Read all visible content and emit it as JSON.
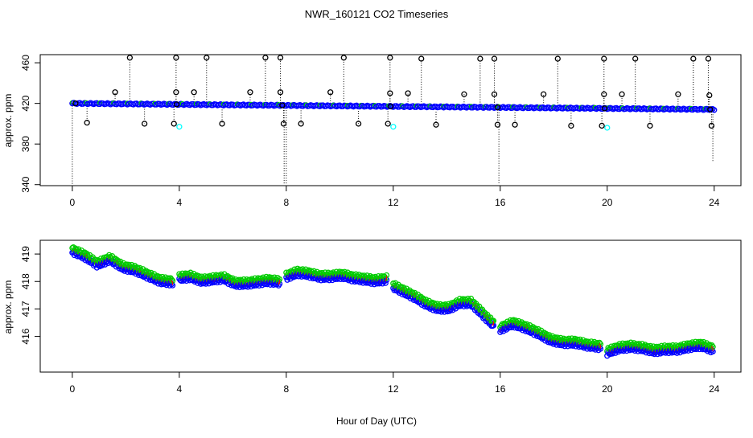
{
  "title": "NWR_160121  CO2 Timeseries",
  "xlabel": "Hour of Day (UTC)",
  "colors": {
    "black": "#000000",
    "blue": "#0000ff",
    "cyan": "#00ffff",
    "green": "#00cc00",
    "red": "#ff0000",
    "axis": "#000000"
  },
  "chart_data": [
    {
      "type": "scatter",
      "ylabel": "approx. ppm",
      "xlim": [
        -1.2,
        25
      ],
      "ylim": [
        339,
        468
      ],
      "xticks": [
        0,
        4,
        8,
        12,
        16,
        20,
        24
      ],
      "yticks": [
        340,
        380,
        420,
        460
      ],
      "ytick_labels": [
        "340",
        "380",
        "420",
        "460"
      ],
      "baseline": {
        "start": 420,
        "end": 414
      },
      "spikes_high": [
        {
          "x": 0.12,
          "y": 420
        },
        {
          "x": 1.6,
          "y": 431
        },
        {
          "x": 2.15,
          "y": 465
        },
        {
          "x": 3.88,
          "y": 465
        },
        {
          "x": 3.88,
          "y": 431
        },
        {
          "x": 4.55,
          "y": 431
        },
        {
          "x": 5.02,
          "y": 465
        },
        {
          "x": 6.65,
          "y": 431
        },
        {
          "x": 7.22,
          "y": 465
        },
        {
          "x": 7.78,
          "y": 465
        },
        {
          "x": 7.78,
          "y": 431
        },
        {
          "x": 9.65,
          "y": 431
        },
        {
          "x": 10.15,
          "y": 465
        },
        {
          "x": 11.88,
          "y": 465
        },
        {
          "x": 11.88,
          "y": 430
        },
        {
          "x": 12.55,
          "y": 430
        },
        {
          "x": 13.05,
          "y": 464
        },
        {
          "x": 14.65,
          "y": 429
        },
        {
          "x": 15.25,
          "y": 464
        },
        {
          "x": 15.78,
          "y": 464
        },
        {
          "x": 15.78,
          "y": 429
        },
        {
          "x": 17.62,
          "y": 429
        },
        {
          "x": 18.15,
          "y": 464
        },
        {
          "x": 19.88,
          "y": 464
        },
        {
          "x": 19.88,
          "y": 429
        },
        {
          "x": 20.55,
          "y": 429
        },
        {
          "x": 21.05,
          "y": 464
        },
        {
          "x": 22.65,
          "y": 429
        },
        {
          "x": 23.22,
          "y": 464
        },
        {
          "x": 23.78,
          "y": 464
        },
        {
          "x": 23.82,
          "y": 428
        }
      ],
      "spikes_low": [
        {
          "x": 0.55,
          "y": 401
        },
        {
          "x": 2.7,
          "y": 400
        },
        {
          "x": 3.8,
          "y": 400
        },
        {
          "x": 5.6,
          "y": 400
        },
        {
          "x": 7.9,
          "y": 400
        },
        {
          "x": 8.55,
          "y": 400
        },
        {
          "x": 10.7,
          "y": 400
        },
        {
          "x": 11.8,
          "y": 400
        },
        {
          "x": 13.6,
          "y": 399
        },
        {
          "x": 15.9,
          "y": 399
        },
        {
          "x": 16.55,
          "y": 399
        },
        {
          "x": 18.65,
          "y": 398
        },
        {
          "x": 19.8,
          "y": 398
        },
        {
          "x": 21.6,
          "y": 398
        },
        {
          "x": 23.9,
          "y": 398
        }
      ],
      "cyan_points": [
        {
          "x": 4.0,
          "y": 397
        },
        {
          "x": 12.0,
          "y": 397
        },
        {
          "x": 20.0,
          "y": 396
        }
      ],
      "deep_drops": [
        {
          "x": 0.0,
          "y": 340
        },
        {
          "x": 7.92,
          "y": 340
        },
        {
          "x": 8.0,
          "y": 340
        },
        {
          "x": 15.95,
          "y": 340
        },
        {
          "x": 23.95,
          "y": 362
        }
      ]
    },
    {
      "type": "scatter",
      "ylabel": "approx. ppm",
      "xlim": [
        -1.2,
        25
      ],
      "ylim": [
        414.7,
        419.5
      ],
      "xticks": [
        0,
        4,
        8,
        12,
        16,
        20,
        24
      ],
      "yticks": [
        416,
        417,
        418,
        419
      ],
      "ytick_labels": [
        "416",
        "417",
        "418",
        "419"
      ],
      "gaps": [
        [
          3.75,
          4.0
        ],
        [
          7.75,
          8.0
        ],
        [
          11.75,
          12.0
        ],
        [
          15.75,
          16.0
        ],
        [
          19.75,
          20.0
        ]
      ],
      "series": [
        {
          "name": "blue",
          "color": "#0000ff",
          "offset": -0.05
        },
        {
          "name": "green",
          "color": "#00cc00",
          "offset": 0.12
        },
        {
          "name": "red",
          "color": "#ff0000",
          "offset": 0.03
        }
      ],
      "segments": [
        {
          "start": 0.0,
          "end": 3.75,
          "y": [
            419.1,
            418.9,
            418.6,
            418.8,
            418.5,
            418.4,
            418.2,
            418.0,
            417.95
          ]
        },
        {
          "start": 4.0,
          "end": 7.75,
          "y": [
            418.1,
            418.15,
            418.0,
            418.05,
            418.1,
            417.9,
            417.9,
            417.95,
            418.0,
            417.95
          ]
        },
        {
          "start": 8.0,
          "end": 11.75,
          "y": [
            418.15,
            418.3,
            418.25,
            418.15,
            418.15,
            418.2,
            418.1,
            418.05,
            418.0,
            418.05
          ]
        },
        {
          "start": 12.0,
          "end": 15.75,
          "y": [
            417.8,
            417.6,
            417.4,
            417.15,
            417.0,
            417.0,
            417.2,
            417.2,
            416.8,
            416.4
          ]
        },
        {
          "start": 16.0,
          "end": 19.75,
          "y": [
            416.25,
            416.45,
            416.3,
            416.1,
            415.85,
            415.75,
            415.75,
            415.65,
            415.6
          ]
        },
        {
          "start": 20.0,
          "end": 23.95,
          "y": [
            415.4,
            415.55,
            415.6,
            415.55,
            415.45,
            415.5,
            415.5,
            415.6,
            415.65,
            415.5
          ]
        }
      ]
    }
  ]
}
